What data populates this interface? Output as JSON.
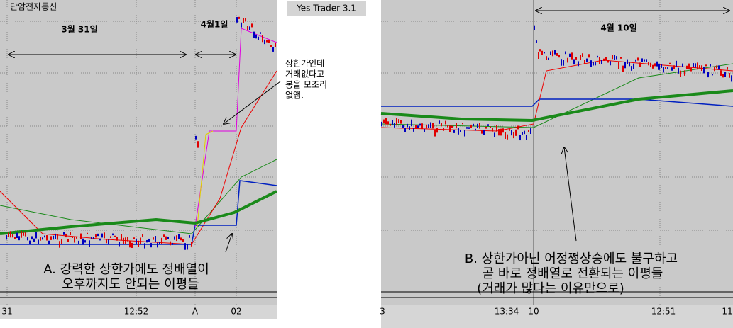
{
  "left_panel": {
    "title": "단암전자통신",
    "date_label_1": "3월 31일",
    "date_label_2": "4월1일",
    "callout": [
      "상한가인데",
      "거래없다고",
      "봉을 모조리",
      "없앰."
    ],
    "caption": [
      "A. 강력한 상한가에도 정배열이",
      "오후까지도 안되는 이평들"
    ],
    "x_labels": [
      "31",
      "12:52",
      "A",
      "02"
    ]
  },
  "window_title": "Yes Trader 3.1",
  "right_panel": {
    "date_label": "4월 10일",
    "caption": [
      "B. 상한가아닌 어정쩡상승에도 불구하고",
      "곧 바로 정배열로 전환되는 이평들",
      "(거래가 많다는 이유만으로)"
    ],
    "x_labels": [
      "3",
      "13:34",
      "10",
      "12:51",
      "11"
    ]
  }
}
